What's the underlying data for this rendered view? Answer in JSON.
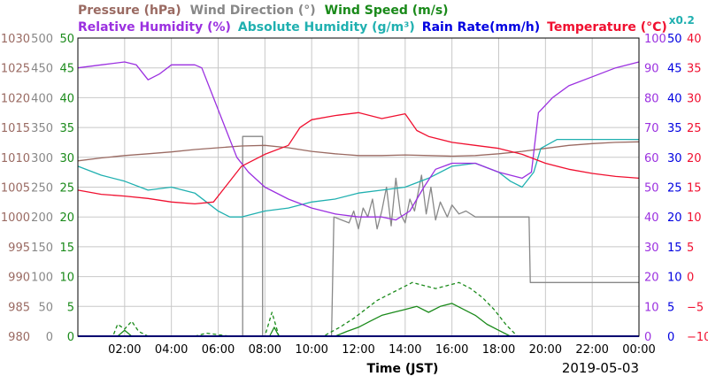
{
  "colors": {
    "pressure": "#9a6a62",
    "wind_direction": "#888888",
    "wind_speed": "#1a8a1a",
    "relative_humidity": "#9b30e0",
    "absolute_humidity": "#20b0b0",
    "rain_rate": "#0000e0",
    "temperature": "#f01030",
    "grid": "#c8c8c8",
    "frame": "#000000"
  },
  "chart_data": {
    "type": "line",
    "xlabel": "Time (JST)",
    "date": "2019-05-03",
    "x_ticks": [
      "02:00",
      "04:00",
      "06:00",
      "08:00",
      "10:00",
      "12:00",
      "14:00",
      "16:00",
      "18:00",
      "20:00",
      "22:00",
      "00:00"
    ],
    "x_range_hours": [
      0,
      24
    ],
    "legend_row1": [
      {
        "key": "pressure",
        "text": "Pressure (hPa)"
      },
      {
        "key": "wind_direction",
        "text": "Wind Direction (°)"
      },
      {
        "key": "wind_speed",
        "text": "Wind Speed (m/s)"
      }
    ],
    "legend_row2": [
      {
        "key": "relative_humidity",
        "text": "Relative Humidity (%)"
      },
      {
        "key": "absolute_humidity",
        "text": "Absolute Humidity (g/m³)"
      },
      {
        "key": "rain_rate",
        "text": "Rain Rate(mm/h)"
      },
      {
        "key": "temperature",
        "text": "Temperature (°C)"
      }
    ],
    "abs_humidity_scale": "x0.2",
    "axes": {
      "pressure": {
        "range": [
          980,
          1030
        ],
        "ticks": [
          "1030",
          "1025",
          "1020",
          "1015",
          "1010",
          "1005",
          "1000",
          "995",
          "990",
          "985",
          "980"
        ]
      },
      "wind_direction": {
        "range": [
          0,
          500
        ],
        "ticks": [
          "500",
          "450",
          "400",
          "350",
          "300",
          "250",
          "200",
          "150",
          "100",
          "50",
          "0"
        ]
      },
      "wind_speed": {
        "range": [
          0,
          50
        ],
        "ticks": [
          "50",
          "45",
          "40",
          "35",
          "30",
          "25",
          "20",
          "15",
          "10",
          "5",
          "0"
        ]
      },
      "relative_humidity": {
        "range": [
          0,
          100
        ],
        "ticks": [
          "100",
          "90",
          "80",
          "70",
          "60",
          "50",
          "40",
          "30",
          "20",
          "10",
          "0"
        ]
      },
      "rain_rate": {
        "range": [
          0,
          50
        ],
        "ticks": [
          "50",
          "45",
          "40",
          "35",
          "30",
          "25",
          "20",
          "15",
          "10",
          "5",
          "0"
        ]
      },
      "temperature": {
        "range": [
          -10,
          40
        ],
        "ticks": [
          "40",
          "35",
          "30",
          "25",
          "20",
          "15",
          "10",
          "5",
          "0",
          "−5",
          "−10"
        ]
      }
    },
    "series": [
      {
        "key": "pressure",
        "axis": "pressure",
        "style": "solid",
        "points": [
          [
            0,
            1009.4
          ],
          [
            1,
            1009.9
          ],
          [
            2,
            1010.3
          ],
          [
            3,
            1010.6
          ],
          [
            4,
            1010.9
          ],
          [
            5,
            1011.3
          ],
          [
            6,
            1011.6
          ],
          [
            7,
            1011.9
          ],
          [
            8,
            1012.0
          ],
          [
            9,
            1011.6
          ],
          [
            10,
            1011.0
          ],
          [
            11,
            1010.6
          ],
          [
            12,
            1010.3
          ],
          [
            13,
            1010.3
          ],
          [
            14,
            1010.4
          ],
          [
            15,
            1010.3
          ],
          [
            16,
            1010.2
          ],
          [
            17,
            1010.3
          ],
          [
            18,
            1010.6
          ],
          [
            19,
            1011.0
          ],
          [
            20,
            1011.5
          ],
          [
            21,
            1012.0
          ],
          [
            22,
            1012.3
          ],
          [
            23,
            1012.5
          ],
          [
            24,
            1012.6
          ]
        ]
      },
      {
        "key": "wind_direction",
        "axis": "wind_direction",
        "style": "step",
        "points": [
          [
            0,
            0
          ],
          [
            6.9,
            0
          ],
          [
            7.05,
            0
          ],
          [
            7.05,
            335
          ],
          [
            7.9,
            335
          ],
          [
            7.9,
            0
          ],
          [
            10.85,
            0
          ],
          [
            10.95,
            200
          ],
          [
            11.6,
            190
          ],
          [
            11.8,
            210
          ],
          [
            12.0,
            180
          ],
          [
            12.2,
            215
          ],
          [
            12.4,
            200
          ],
          [
            12.6,
            230
          ],
          [
            12.8,
            180
          ],
          [
            13.0,
            210
          ],
          [
            13.2,
            250
          ],
          [
            13.4,
            185
          ],
          [
            13.6,
            265
          ],
          [
            13.8,
            205
          ],
          [
            14.0,
            190
          ],
          [
            14.2,
            230
          ],
          [
            14.4,
            210
          ],
          [
            14.7,
            270
          ],
          [
            14.9,
            205
          ],
          [
            15.1,
            250
          ],
          [
            15.3,
            195
          ],
          [
            15.5,
            225
          ],
          [
            15.8,
            200
          ],
          [
            16.0,
            220
          ],
          [
            16.3,
            205
          ],
          [
            16.6,
            210
          ],
          [
            17.0,
            200
          ],
          [
            19.3,
            200
          ],
          [
            19.35,
            90
          ],
          [
            24,
            90
          ]
        ]
      },
      {
        "key": "wind_speed_max",
        "axis": "wind_speed",
        "style": "dashed",
        "points": [
          [
            0,
            0
          ],
          [
            1.5,
            0
          ],
          [
            1.7,
            2
          ],
          [
            2.0,
            1.2
          ],
          [
            2.3,
            2.5
          ],
          [
            2.6,
            0.8
          ],
          [
            3.0,
            0
          ],
          [
            5.0,
            0
          ],
          [
            5.5,
            0.5
          ],
          [
            6.5,
            0
          ],
          [
            7.2,
            0
          ],
          [
            8.0,
            0
          ],
          [
            8.3,
            4
          ],
          [
            8.6,
            0
          ],
          [
            10.5,
            0
          ],
          [
            11.2,
            1.5
          ],
          [
            11.8,
            3
          ],
          [
            12.3,
            4.5
          ],
          [
            12.8,
            6
          ],
          [
            13.3,
            7
          ],
          [
            13.8,
            8
          ],
          [
            14.3,
            9
          ],
          [
            14.8,
            8.5
          ],
          [
            15.3,
            8
          ],
          [
            15.8,
            8.5
          ],
          [
            16.3,
            9
          ],
          [
            16.8,
            8
          ],
          [
            17.3,
            6.5
          ],
          [
            17.8,
            4.5
          ],
          [
            18.3,
            2
          ],
          [
            18.8,
            0
          ],
          [
            24,
            0
          ]
        ]
      },
      {
        "key": "wind_speed_avg",
        "axis": "wind_speed",
        "style": "solid",
        "points": [
          [
            0,
            0
          ],
          [
            1.7,
            0
          ],
          [
            2.0,
            1
          ],
          [
            2.3,
            0
          ],
          [
            8.2,
            0
          ],
          [
            8.4,
            1.5
          ],
          [
            8.6,
            0
          ],
          [
            11.0,
            0
          ],
          [
            11.5,
            0.8
          ],
          [
            12.0,
            1.5
          ],
          [
            12.5,
            2.5
          ],
          [
            13.0,
            3.5
          ],
          [
            13.5,
            4
          ],
          [
            14.0,
            4.5
          ],
          [
            14.5,
            5
          ],
          [
            15.0,
            4
          ],
          [
            15.5,
            5
          ],
          [
            16.0,
            5.5
          ],
          [
            16.5,
            4.5
          ],
          [
            17.0,
            3.5
          ],
          [
            17.5,
            2
          ],
          [
            18.0,
            1
          ],
          [
            18.5,
            0
          ],
          [
            24,
            0
          ]
        ]
      },
      {
        "key": "relative_humidity",
        "axis": "relative_humidity",
        "style": "solid",
        "points": [
          [
            0,
            90
          ],
          [
            1,
            91
          ],
          [
            2,
            92
          ],
          [
            2.5,
            91
          ],
          [
            3,
            86
          ],
          [
            3.5,
            88
          ],
          [
            4,
            91
          ],
          [
            5,
            91
          ],
          [
            5.3,
            90
          ],
          [
            5.8,
            80
          ],
          [
            6.3,
            70
          ],
          [
            6.8,
            60
          ],
          [
            7.3,
            55
          ],
          [
            8,
            50
          ],
          [
            9,
            46
          ],
          [
            10,
            43
          ],
          [
            11,
            41
          ],
          [
            12,
            40
          ],
          [
            13,
            40
          ],
          [
            13.6,
            39
          ],
          [
            14.2,
            42
          ],
          [
            14.8,
            50
          ],
          [
            15.3,
            56
          ],
          [
            16,
            58
          ],
          [
            17,
            58
          ],
          [
            18,
            55
          ],
          [
            19,
            53
          ],
          [
            19.4,
            55
          ],
          [
            19.7,
            75
          ],
          [
            20.3,
            80
          ],
          [
            21,
            84
          ],
          [
            22,
            87
          ],
          [
            23,
            90
          ],
          [
            24,
            92
          ]
        ]
      },
      {
        "key": "absolute_humidity",
        "axis": "relative_humidity",
        "style": "solid",
        "points": [
          [
            0,
            57
          ],
          [
            1,
            54
          ],
          [
            2,
            52
          ],
          [
            3,
            49
          ],
          [
            4,
            50
          ],
          [
            5,
            48
          ],
          [
            5.5,
            45
          ],
          [
            6,
            42
          ],
          [
            6.5,
            40
          ],
          [
            7,
            40
          ],
          [
            8,
            42
          ],
          [
            9,
            43
          ],
          [
            10,
            45
          ],
          [
            11,
            46
          ],
          [
            12,
            48
          ],
          [
            13,
            49
          ],
          [
            14,
            50
          ],
          [
            15,
            53
          ],
          [
            16,
            57
          ],
          [
            17,
            58
          ],
          [
            18,
            55
          ],
          [
            18.5,
            52
          ],
          [
            19,
            50
          ],
          [
            19.5,
            55
          ],
          [
            19.8,
            63
          ],
          [
            20.5,
            66
          ],
          [
            21,
            66
          ],
          [
            22,
            66
          ],
          [
            23,
            66
          ],
          [
            24,
            66
          ]
        ]
      },
      {
        "key": "rain_rate",
        "axis": "rain_rate",
        "style": "solid",
        "points": [
          [
            0,
            0
          ],
          [
            24,
            0
          ]
        ]
      },
      {
        "key": "temperature",
        "axis": "temperature",
        "style": "solid",
        "points": [
          [
            0,
            14.5
          ],
          [
            1,
            13.8
          ],
          [
            2,
            13.5
          ],
          [
            3,
            13.1
          ],
          [
            4,
            12.5
          ],
          [
            5,
            12.2
          ],
          [
            5.8,
            12.5
          ],
          [
            6.3,
            15
          ],
          [
            7,
            18.5
          ],
          [
            8,
            20.5
          ],
          [
            9,
            22
          ],
          [
            9.5,
            25
          ],
          [
            10,
            26.3
          ],
          [
            11,
            27.0
          ],
          [
            12,
            27.5
          ],
          [
            13,
            26.5
          ],
          [
            14,
            27.3
          ],
          [
            14.5,
            24.5
          ],
          [
            15,
            23.5
          ],
          [
            16,
            22.5
          ],
          [
            17,
            22.0
          ],
          [
            18,
            21.5
          ],
          [
            19,
            20.5
          ],
          [
            20,
            19.0
          ],
          [
            21,
            18.0
          ],
          [
            22,
            17.3
          ],
          [
            23,
            16.8
          ],
          [
            24,
            16.5
          ]
        ]
      }
    ]
  }
}
